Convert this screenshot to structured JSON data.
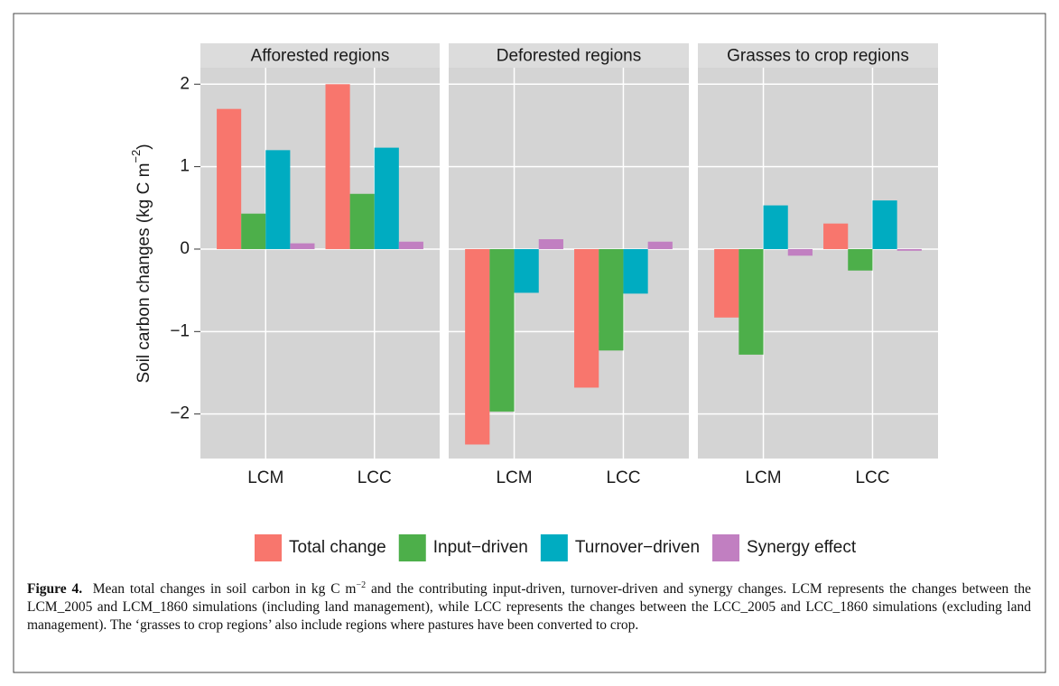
{
  "chart_data": {
    "type": "bar",
    "y_label": {
      "text": "Soil carbon changes (kg C m",
      "sup": "−2",
      "end": ")"
    },
    "ylim": [
      -2.54,
      2.2
    ],
    "yticks": [
      {
        "value": -2,
        "label": "−2"
      },
      {
        "value": -1,
        "label": "−1"
      },
      0,
      1,
      2
    ],
    "grid": true,
    "categories": [
      "LCM",
      "LCC"
    ],
    "series": [
      {
        "name": "Total change",
        "color": "#f8766d"
      },
      {
        "name": "Input−driven",
        "color": "#4daf4a"
      },
      {
        "name": "Turnover−driven",
        "color": "#00acc1"
      },
      {
        "name": "Synergy effect",
        "color": "#c17fc1"
      }
    ],
    "legend": "bottom",
    "facets": [
      {
        "title": "Afforested regions",
        "values": [
          [
            1.7,
            2.0
          ],
          [
            0.43,
            0.67
          ],
          [
            1.2,
            1.23
          ],
          [
            0.07,
            0.09
          ]
        ]
      },
      {
        "title": "Deforested regions",
        "values": [
          [
            -2.37,
            -1.68
          ],
          [
            -1.97,
            -1.23
          ],
          [
            -0.53,
            -0.54
          ],
          [
            0.12,
            0.09
          ]
        ]
      },
      {
        "title": "Grasses to crop regions",
        "values": [
          [
            -0.83,
            0.31
          ],
          [
            -1.28,
            -0.26
          ],
          [
            0.53,
            0.59
          ],
          [
            -0.08,
            -0.02
          ]
        ]
      }
    ]
  },
  "caption": {
    "label": "Figure 4.",
    "text": "Mean total changes in soil carbon in kg C m",
    "sup": "−2",
    "rest": "and the contributing input-driven, turnover-driven and synergy changes. LCM represents the changes between the LCM_2005 and LCM_1860 simulations (including land management), while LCC represents the changes between the LCC_2005 and LCC_1860 simulations (excluding land management). The ‘grasses to crop regions’ also include regions where pastures have been converted to crop."
  }
}
